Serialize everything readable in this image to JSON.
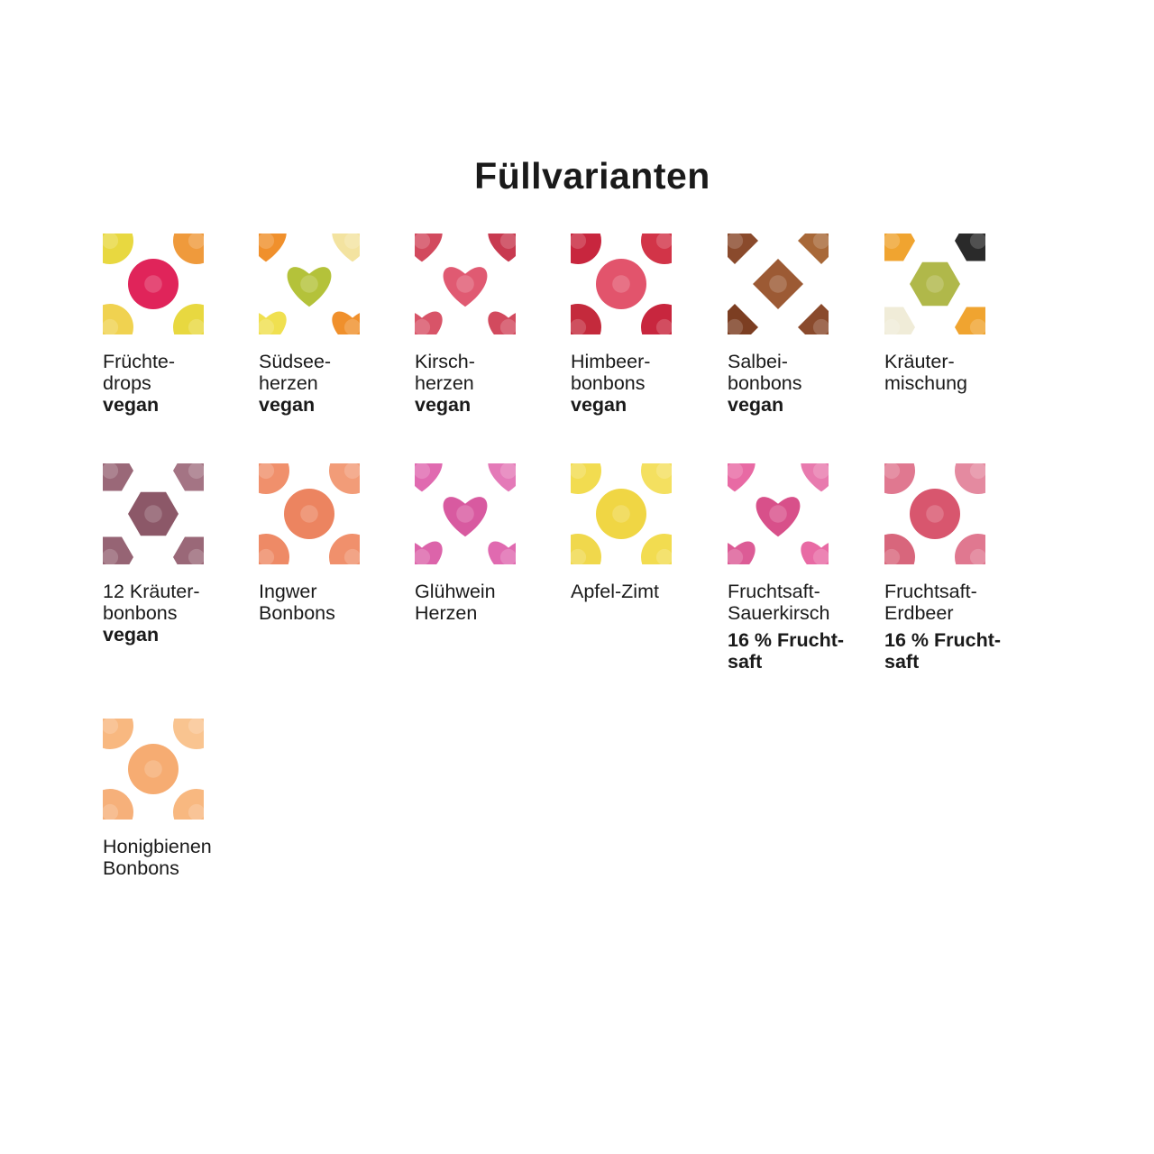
{
  "title": "Füllvarianten",
  "items": [
    {
      "name": "fruechtedrops",
      "lines": [
        "Früchte-",
        "drops"
      ],
      "tag": [
        "vegan"
      ],
      "colors": [
        "#e8d840",
        "#e0245a",
        "#ef9a3c",
        "#f0d250"
      ]
    },
    {
      "name": "suedseeherzen",
      "lines": [
        "Südsee-",
        "herzen"
      ],
      "tag": [
        "vegan"
      ],
      "colors": [
        "#f0902c",
        "#b4c23a",
        "#f3e3a0",
        "#f0e050"
      ]
    },
    {
      "name": "kirschherzen",
      "lines": [
        "Kirsch-",
        "herzen"
      ],
      "tag": [
        "vegan"
      ],
      "colors": [
        "#d24a5e",
        "#e05a72",
        "#c83a50",
        "#d85468"
      ]
    },
    {
      "name": "himbeerbonbons",
      "lines": [
        "Himbeer-",
        "bonbons"
      ],
      "tag": [
        "vegan"
      ],
      "colors": [
        "#c8263e",
        "#e2546c",
        "#d23448",
        "#c42a3c"
      ]
    },
    {
      "name": "salbeibonbons",
      "lines": [
        "Salbei-",
        "bonbons"
      ],
      "tag": [
        "vegan"
      ],
      "colors": [
        "#8a4a2c",
        "#9c5a34",
        "#a86838",
        "#7c3e22"
      ]
    },
    {
      "name": "kraeutermischung",
      "lines": [
        "Kräuter-",
        "mischung"
      ],
      "tag": [],
      "colors": [
        "#f0a430",
        "#b0b84a",
        "#2a2a2a",
        "#f0ecd8"
      ]
    },
    {
      "name": "12-kraeuterbonbons",
      "lines": [
        "12 Kräuter-",
        "bonbons"
      ],
      "tag": [
        "vegan"
      ],
      "colors": [
        "#9a6878",
        "#8c5868",
        "#a47484",
        "#966474"
      ]
    },
    {
      "name": "ingwer-bonbons",
      "lines": [
        "Ingwer",
        "Bonbons"
      ],
      "tag": [],
      "colors": [
        "#f0906c",
        "#ec8460",
        "#f29c78",
        "#ee8a66"
      ]
    },
    {
      "name": "gluehwein-herzen",
      "lines": [
        "Glühwein",
        "Herzen"
      ],
      "tag": [],
      "colors": [
        "#e06ab0",
        "#d85aa0",
        "#e47ab8",
        "#dc64aa"
      ]
    },
    {
      "name": "apfel-zimt",
      "lines": [
        "Apfel-Zimt"
      ],
      "tag": [],
      "colors": [
        "#f2dc50",
        "#f0d644",
        "#f4e060",
        "#f0d84c"
      ]
    },
    {
      "name": "fruchtsaft-sauerkirsch",
      "lines": [
        "Fruchtsaft-",
        "Sauerkirsch"
      ],
      "tag": [
        "16 % Frucht-",
        "saft"
      ],
      "colors": [
        "#e86aa4",
        "#d8508a",
        "#e87aae",
        "#dc5c96"
      ]
    },
    {
      "name": "fruchtsaft-erdbeer",
      "lines": [
        "Fruchtsaft-",
        "Erdbeer"
      ],
      "tag": [
        "16 % Frucht-",
        "saft"
      ],
      "colors": [
        "#e07890",
        "#d8566e",
        "#e48aa0",
        "#d8667c"
      ]
    },
    {
      "name": "honigbienen-bonbons",
      "lines": [
        "Honigbienen",
        "Bonbons"
      ],
      "tag": [],
      "colors": [
        "#f8b880",
        "#f6ac72",
        "#f9c490",
        "#f6b07a"
      ]
    }
  ]
}
